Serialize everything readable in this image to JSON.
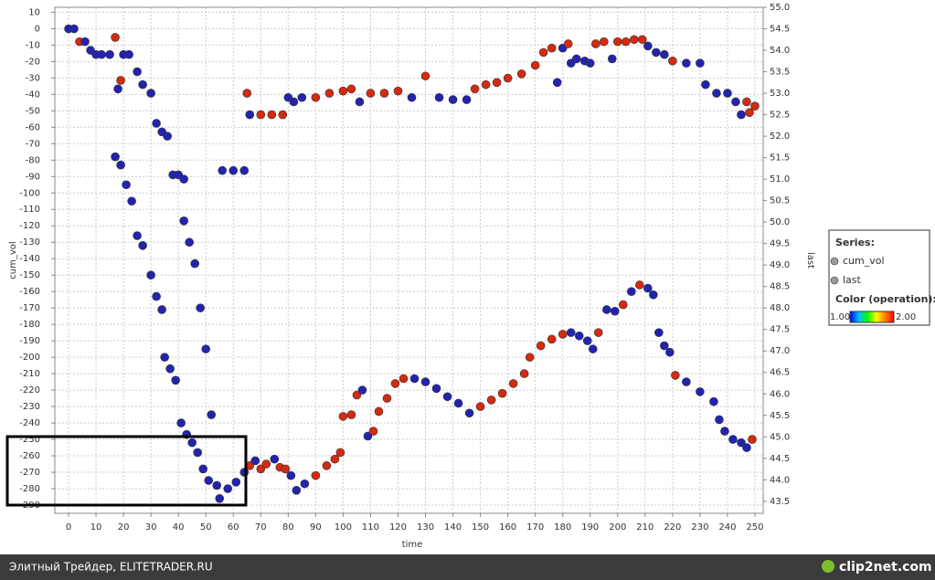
{
  "chart_data": {
    "type": "scatter",
    "xlabel": "time",
    "ylabel": "cum_vol",
    "y2label": "last",
    "xlim": [
      -5,
      253
    ],
    "ylim": [
      -295,
      13
    ],
    "y2lim": [
      43.22,
      55.0
    ],
    "xticks": [
      0,
      10,
      20,
      30,
      40,
      50,
      60,
      70,
      80,
      90,
      100,
      110,
      120,
      130,
      140,
      150,
      160,
      170,
      180,
      190,
      200,
      210,
      220,
      230,
      240,
      250
    ],
    "yticks": [
      10,
      0,
      -10,
      -20,
      -30,
      -40,
      -50,
      -60,
      -70,
      -80,
      -90,
      -100,
      -110,
      -120,
      -130,
      -140,
      -150,
      -160,
      -170,
      -180,
      -190,
      -200,
      -210,
      -220,
      -230,
      -240,
      -250,
      -260,
      -270,
      -280,
      -290
    ],
    "y2ticks": [
      43.5,
      {
        "value": 44,
        "label": "44.0"
      },
      44.5,
      {
        "value": 45,
        "label": "45.0"
      },
      45.5,
      {
        "value": 46,
        "label": "46.0"
      },
      46.5,
      {
        "value": 47,
        "label": "47.0"
      },
      47.5,
      {
        "value": 48,
        "label": "48.0"
      },
      48.5,
      {
        "value": 49,
        "label": "49.0"
      },
      49.5,
      {
        "value": 50,
        "label": "50.0"
      },
      50.5,
      {
        "value": 51,
        "label": "51.0"
      },
      51.5,
      {
        "value": 52,
        "label": "52.0"
      },
      52.5,
      {
        "value": 53,
        "label": "53.0"
      },
      53.5,
      {
        "value": 54,
        "label": "54.0"
      },
      54.5,
      {
        "value": 55,
        "label": "55.0"
      }
    ],
    "grid": true,
    "legend_title": "Series:",
    "color_title": "Color (operation):",
    "color_scale": {
      "min": {
        "value": 1,
        "label": "1.00"
      },
      "max": {
        "value": 2,
        "label": "2.00"
      },
      "colors": [
        "#0000ff",
        "#00c0ff",
        "#00ff00",
        "#ffff00",
        "#ff8000",
        "#ff0000"
      ]
    },
    "operation_colors": {
      "1": "#2323b0",
      "2": "#d42a10"
    },
    "series": [
      {
        "name": "cum_vol",
        "color": "#999999",
        "axis": "y",
        "x": [
          17,
          19,
          21,
          23,
          25,
          27,
          30,
          32,
          34,
          35,
          37,
          39,
          42,
          44,
          46,
          48,
          50,
          52,
          41,
          43,
          45,
          47,
          49,
          51,
          54,
          55,
          58,
          61,
          64,
          66,
          68,
          70,
          72,
          75,
          77,
          79,
          81,
          83,
          86,
          90,
          94,
          97,
          99,
          100,
          103,
          105,
          107,
          109,
          111,
          113,
          116,
          119,
          122,
          126,
          130,
          134,
          138,
          142,
          146,
          150,
          154,
          158,
          162,
          166,
          168,
          172,
          176,
          180,
          183,
          186,
          189,
          191,
          193,
          196,
          199,
          202,
          205,
          208,
          211,
          213,
          215,
          217,
          219,
          221,
          225,
          230,
          235,
          237,
          239,
          242,
          245,
          247,
          249
        ],
        "values": [
          -78,
          -83,
          -95,
          -105,
          -126,
          -132,
          -150,
          -163,
          -171,
          -200,
          -207,
          -214,
          -117,
          -130,
          -143,
          -170,
          -195,
          -235,
          -240,
          -247,
          -252,
          -258,
          -268,
          -275,
          -278,
          -286,
          -280,
          -276,
          -270,
          -266,
          -263,
          -268,
          -265,
          -262,
          -267,
          -268,
          -272,
          -281,
          -277,
          -272,
          -266,
          -262,
          -258,
          -236,
          -235,
          -223,
          -220,
          -248,
          -245,
          -233,
          -225,
          -216,
          -213,
          -213,
          -215,
          -219,
          -224,
          -228,
          -234,
          -230,
          -226,
          -222,
          -216,
          -210,
          -200,
          -193,
          -189,
          -186,
          -185,
          -187,
          -190,
          -195,
          -185,
          -171,
          -172,
          -168,
          -160,
          -156,
          -158,
          -162,
          -185,
          -193,
          -197,
          -211,
          -215,
          -221,
          -227,
          -238,
          -245,
          -250,
          -252,
          -255,
          -250
        ],
        "operation": [
          1,
          1,
          1,
          1,
          1,
          1,
          1,
          1,
          1,
          1,
          1,
          1,
          1,
          1,
          1,
          1,
          1,
          1,
          1,
          1,
          1,
          1,
          1,
          1,
          1,
          1,
          1,
          1,
          1,
          2,
          1,
          2,
          2,
          1,
          2,
          2,
          1,
          1,
          1,
          2,
          2,
          2,
          2,
          2,
          2,
          2,
          1,
          1,
          2,
          2,
          2,
          2,
          2,
          1,
          1,
          1,
          1,
          1,
          1,
          2,
          2,
          2,
          2,
          2,
          2,
          2,
          2,
          2,
          1,
          1,
          1,
          1,
          2,
          1,
          1,
          2,
          1,
          2,
          1,
          1,
          1,
          1,
          1,
          2,
          1,
          1,
          1,
          1,
          1,
          1,
          1,
          1,
          2
        ]
      },
      {
        "name": "last",
        "color": "#999999",
        "axis": "y2",
        "x": [
          0,
          2,
          4,
          6,
          8,
          10,
          12,
          15,
          17,
          18,
          19,
          20,
          22,
          25,
          27,
          30,
          32,
          34,
          36,
          38,
          40,
          42,
          56,
          60,
          64,
          65,
          66,
          70,
          74,
          78,
          80,
          82,
          85,
          90,
          95,
          100,
          103,
          106,
          110,
          115,
          120,
          125,
          130,
          135,
          140,
          145,
          148,
          152,
          156,
          160,
          165,
          170,
          173,
          176,
          178,
          180,
          182,
          183,
          185,
          188,
          190,
          192,
          195,
          198,
          200,
          203,
          206,
          209,
          211,
          214,
          217,
          220,
          225,
          230,
          232,
          236,
          240,
          243,
          245,
          247,
          248,
          250
        ],
        "values": [
          54.5,
          54.5,
          54.2,
          54.2,
          54.0,
          53.9,
          53.9,
          53.9,
          54.3,
          53.1,
          53.3,
          53.9,
          53.9,
          53.5,
          53.2,
          53.0,
          52.3,
          52.1,
          52.0,
          51.1,
          51.1,
          51.0,
          51.2,
          51.2,
          51.2,
          53.0,
          52.5,
          52.5,
          52.5,
          52.5,
          52.9,
          52.8,
          52.9,
          52.9,
          53.0,
          53.05,
          53.1,
          52.8,
          53.0,
          53.0,
          53.05,
          52.9,
          53.4,
          52.9,
          52.85,
          52.85,
          53.1,
          53.2,
          53.25,
          53.35,
          53.45,
          53.65,
          53.95,
          54.05,
          53.25,
          54.05,
          54.15,
          53.7,
          53.8,
          53.75,
          53.7,
          54.15,
          54.2,
          53.8,
          54.2,
          54.2,
          54.25,
          54.25,
          54.1,
          53.95,
          53.9,
          53.75,
          53.7,
          53.7,
          53.2,
          53.0,
          53.0,
          52.8,
          52.5,
          52.8,
          52.55,
          52.7
        ],
        "operation": [
          1,
          1,
          2,
          1,
          1,
          1,
          1,
          1,
          2,
          1,
          2,
          1,
          1,
          1,
          1,
          1,
          1,
          1,
          1,
          1,
          1,
          1,
          1,
          1,
          1,
          2,
          1,
          2,
          2,
          2,
          1,
          1,
          1,
          2,
          2,
          2,
          2,
          1,
          2,
          2,
          2,
          1,
          2,
          1,
          1,
          1,
          2,
          2,
          2,
          2,
          2,
          2,
          2,
          2,
          1,
          1,
          2,
          1,
          1,
          1,
          1,
          2,
          2,
          1,
          2,
          2,
          2,
          2,
          1,
          1,
          1,
          2,
          1,
          1,
          1,
          1,
          1,
          1,
          1,
          2,
          2,
          2
        ]
      }
    ],
    "footer_left": "Элитный Трейдер, ELITETRADER.RU",
    "footer_right": "clip2net.com"
  }
}
